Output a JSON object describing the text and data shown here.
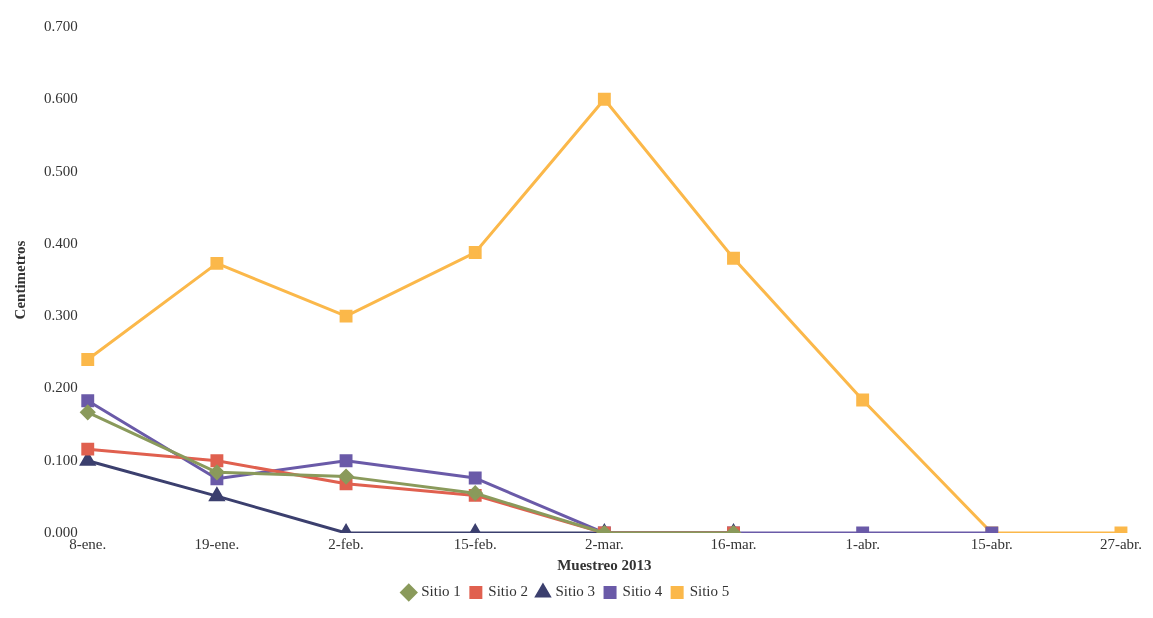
{
  "chart_data": {
    "type": "line",
    "xlabel": "Muestreo 2013",
    "ylabel": "Centimetros",
    "categories": [
      "8-ene.",
      "19-ene.",
      "2-feb.",
      "15-feb.",
      "2-mar.",
      "16-mar.",
      "1-abr.",
      "15-abr.",
      "27-abr."
    ],
    "series": [
      {
        "name": "Sitio 1",
        "color": "#8a9a5b",
        "marker": "diamond",
        "values": [
          0.167,
          0.084,
          0.078,
          0.055,
          0,
          0,
          null,
          null,
          null
        ]
      },
      {
        "name": "Sitio 2",
        "color": "#e0604f",
        "marker": "square",
        "values": [
          0.116,
          0.1,
          0.068,
          0.052,
          0,
          0,
          null,
          null,
          null
        ]
      },
      {
        "name": "Sitio 3",
        "color": "#3b3f6e",
        "marker": "triangle",
        "values": [
          0.1,
          0.051,
          0,
          0,
          0,
          0,
          null,
          null,
          null
        ]
      },
      {
        "name": "Sitio 4",
        "color": "#6a5aa8",
        "marker": "square",
        "values": [
          0.183,
          0.075,
          0.1,
          0.076,
          0,
          0,
          0,
          0,
          null
        ]
      },
      {
        "name": "Sitio 5",
        "color": "#fbb84a",
        "marker": "square",
        "values": [
          0.24,
          0.373,
          0.3,
          0.388,
          0.6,
          0.38,
          0.184,
          0,
          0
        ]
      }
    ],
    "ylim": [
      0,
      0.7
    ],
    "yticks": [
      {
        "value": 0,
        "label": "0.000"
      },
      {
        "value": 0.1,
        "label": "0.100"
      },
      {
        "value": 0.2,
        "label": "0.200"
      },
      {
        "value": 0.3,
        "label": "0.300"
      },
      {
        "value": 0.4,
        "label": "0.400"
      },
      {
        "value": 0.5,
        "label": "0.500"
      },
      {
        "value": 0.6,
        "label": "0.600"
      },
      {
        "value": 0.7,
        "label": "0.700"
      }
    ],
    "grid": false,
    "legend": "bottom"
  }
}
